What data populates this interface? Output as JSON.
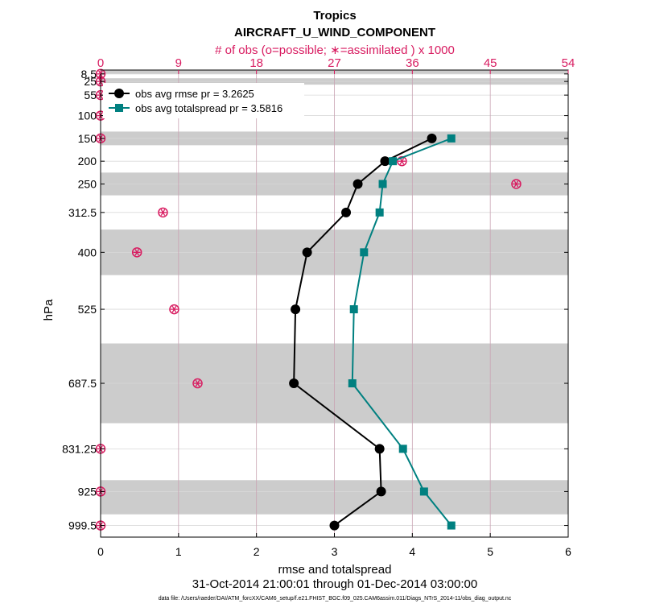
{
  "chart_data": {
    "type": "line",
    "title": "Tropics",
    "subtitle": "AIRCRAFT_U_WIND_COMPONENT",
    "top_axis_label": "# of obs (o=possible; ∗=assimilated ) x 1000",
    "xlabel": "rmse and totalspread",
    "ylabel": "hPa",
    "date_range": "31-Oct-2014 21:00:01 through 01-Dec-2014 03:00:00",
    "data_file": "data file: /Users/raeder/DAI/ATM_forcXX/CAM6_setup/f.e21.FHIST_BGC.f09_025.CAM6assim.011/Diags_NTrS_2014-11/obs_diag_output.nc",
    "xlim": [
      0,
      6
    ],
    "x_ticks": [
      0,
      1,
      2,
      3,
      4,
      5,
      6
    ],
    "top_xlim": [
      0,
      54
    ],
    "top_ticks": [
      0,
      9,
      18,
      27,
      36,
      45,
      54
    ],
    "ylim": [
      1025,
      0
    ],
    "yscale": "linear, inverted",
    "y_ticks": [
      "8.5",
      "25",
      "55",
      "100",
      "150",
      "200",
      "250",
      "312.5",
      "400",
      "525",
      "687.5",
      "831.25",
      "925",
      "999.5"
    ],
    "y_tick_values": [
      8.5,
      25,
      55,
      100,
      150,
      200,
      250,
      312.5,
      400,
      525,
      687.5,
      831.25,
      925,
      999.5
    ],
    "shaded_bands": [
      [
        0,
        9
      ],
      [
        18,
        32
      ],
      [
        135,
        165
      ],
      [
        225,
        275
      ],
      [
        350,
        450
      ],
      [
        600,
        775
      ],
      [
        900,
        975
      ]
    ],
    "legend_position": "top-left",
    "series": [
      {
        "name": "obs avg rmse",
        "legend": "obs avg rmse     pr = 3.2625",
        "color": "#000000",
        "marker": "circle",
        "levels": [
          150,
          200,
          250,
          312.5,
          400,
          525,
          687.5,
          831.25,
          925,
          999.5
        ],
        "values": [
          4.25,
          3.65,
          3.3,
          3.15,
          2.65,
          2.5,
          2.48,
          3.58,
          3.6,
          3.0
        ]
      },
      {
        "name": "obs avg totalspread",
        "legend": "obs avg totalspread pr = 3.5816",
        "color": "#008080",
        "marker": "square",
        "levels": [
          150,
          200,
          250,
          312.5,
          400,
          525,
          687.5,
          831.25,
          925,
          999.5
        ],
        "values": [
          4.5,
          3.75,
          3.62,
          3.58,
          3.38,
          3.25,
          3.23,
          3.88,
          4.15,
          4.5
        ]
      }
    ],
    "obs_counts_x1000": {
      "color": "#d81b60",
      "levels": [
        8.5,
        25,
        55,
        100,
        150,
        200,
        250,
        312.5,
        400,
        525,
        687.5,
        831.25,
        925,
        999.5
      ],
      "possible": [
        0,
        0,
        0,
        0,
        0,
        34.8,
        48.0,
        7.2,
        4.2,
        8.5,
        11.2,
        0,
        0,
        0
      ],
      "assimilated": [
        0,
        0,
        0,
        0,
        0,
        34.8,
        48.0,
        7.2,
        4.2,
        8.5,
        11.2,
        0,
        0,
        0
      ]
    }
  }
}
